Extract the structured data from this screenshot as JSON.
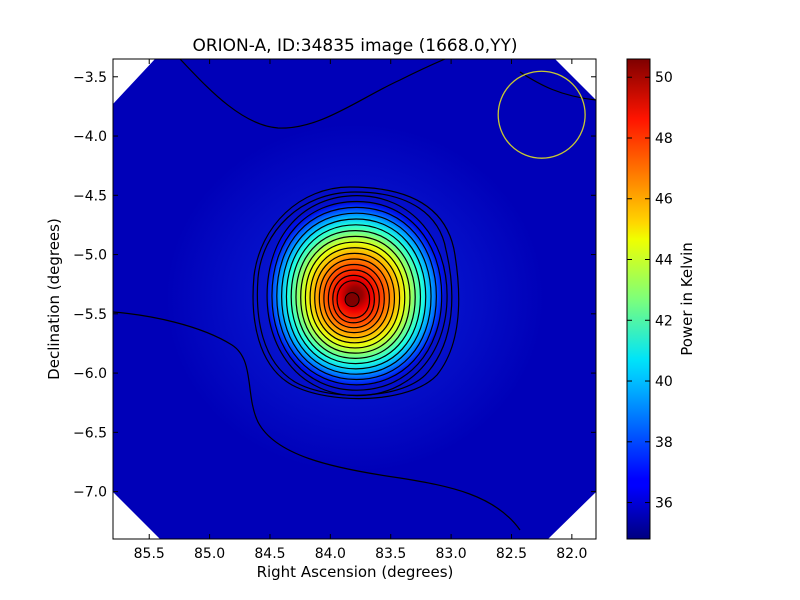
{
  "chart_data": {
    "type": "heatmap",
    "title": "ORION-A, ID:34835 image (1668.0,YY)",
    "xlabel": "Right Ascension (degrees)",
    "ylabel": "Declination (degrees)",
    "colorbar_label": "Power in Kelvin",
    "xlim": [
      85.8,
      81.8
    ],
    "ylim": [
      -7.4,
      -3.35
    ],
    "x_ticks": [
      85.5,
      85.0,
      84.5,
      84.0,
      83.5,
      83.0,
      82.5,
      82.0
    ],
    "x_tick_labels": [
      "85.5",
      "85.0",
      "84.5",
      "84.0",
      "83.5",
      "83.0",
      "82.5",
      "82.0"
    ],
    "y_ticks": [
      -3.5,
      -4.0,
      -4.5,
      -5.0,
      -5.5,
      -6.0,
      -6.5,
      -7.0
    ],
    "y_tick_labels": [
      "−3.5",
      "−4.0",
      "−4.5",
      "−5.0",
      "−5.5",
      "−6.0",
      "−6.5",
      "−7.0"
    ],
    "colorbar_range": [
      34.8,
      50.6
    ],
    "colorbar_ticks": [
      36,
      38,
      40,
      42,
      44,
      46,
      48,
      50
    ],
    "colorbar_tick_labels": [
      "36",
      "38",
      "40",
      "42",
      "44",
      "46",
      "48",
      "50"
    ],
    "colormap": "jet",
    "peak": {
      "ra": 83.82,
      "dec": -5.38,
      "value": 50.4
    },
    "background_level": 35.2,
    "beam_circle": {
      "ra": 82.25,
      "dec": -3.82,
      "radius_deg": 0.36,
      "color": "#c8c832"
    },
    "contours": "black",
    "grid": false
  }
}
